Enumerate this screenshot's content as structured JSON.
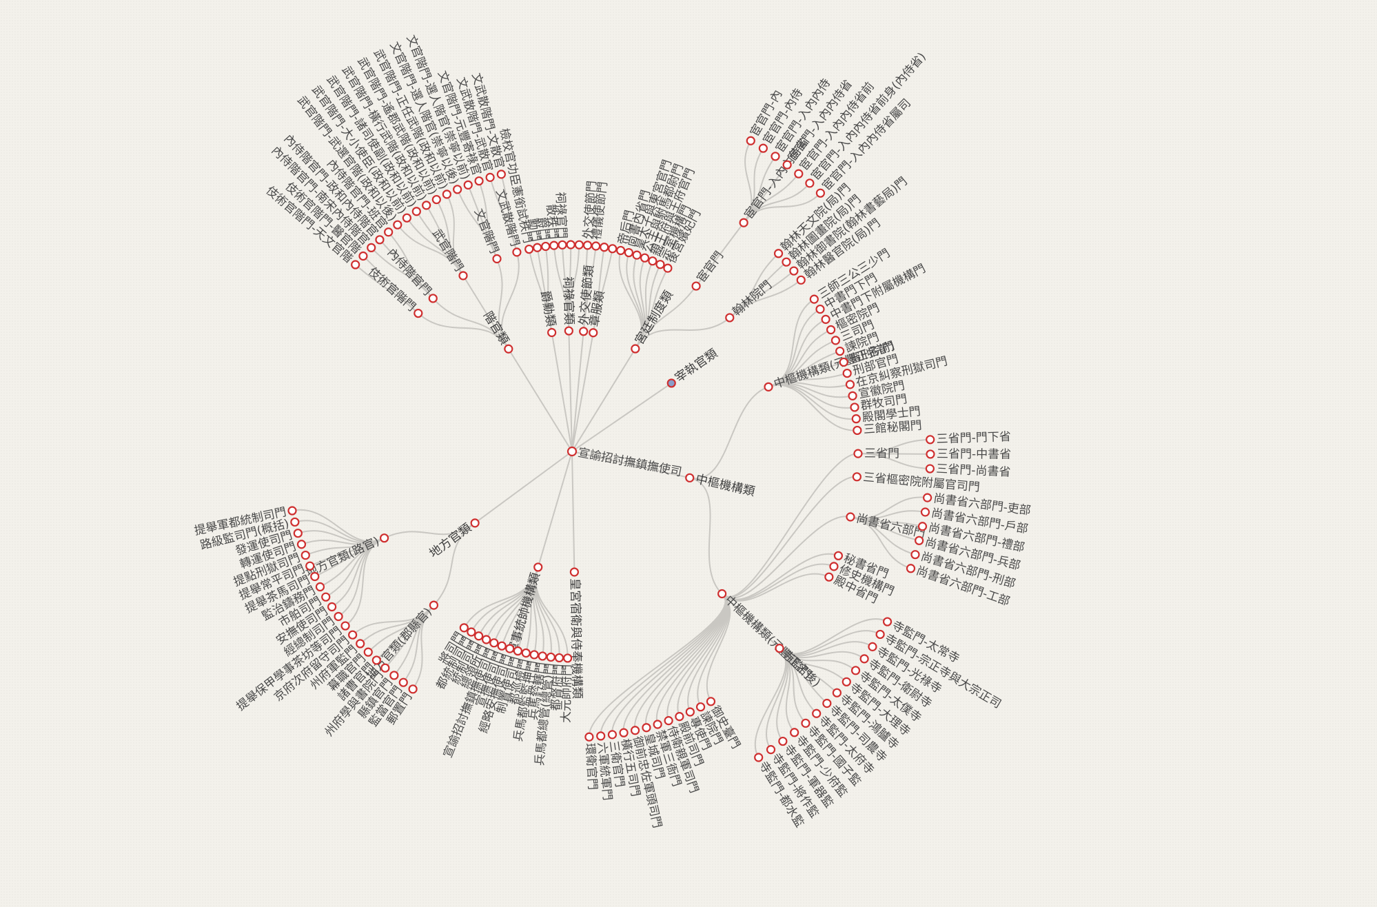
{
  "tree": {
    "label": "宣諭招討撫鎮撫使司",
    "children": [
      {
        "label": "階官類",
        "children": [
          {
            "label": "伎術官階門",
            "children": [
              {
                "label": "伎術官階門-天文官階"
              },
              {
                "label": "伎術官階門-醫官階"
              }
            ]
          },
          {
            "label": "內侍階官門",
            "children": [
              {
                "label": "內侍階官門-南宋內侍階官"
              },
              {
                "label": "內侍階官門-政和內侍階官"
              },
              {
                "label": "內侍階官門-班官"
              }
            ]
          },
          {
            "label": "武官階門",
            "children": [
              {
                "label": "武官階門-武選官階(政和以後)"
              },
              {
                "label": "武官階門-大小使臣(政和以前)"
              },
              {
                "label": "武官階門-諸司使副(政和以前)"
              },
              {
                "label": "武官階門-橫行武階(政和以前)"
              },
              {
                "label": "武官階門-遙郡武階(政和以前)"
              },
              {
                "label": "武官階門-正任武階(政和以前)"
              }
            ]
          },
          {
            "label": "文官階門",
            "children": [
              {
                "label": "文官階門-選人階官(崇寧以後)"
              },
              {
                "label": "文官階門-選人階官(崇寧以前)"
              },
              {
                "label": "文官階門-元豐寄祿官"
              }
            ]
          },
          {
            "label": "文武散階門",
            "children": [
              {
                "label": "文武散階門-武散官"
              },
              {
                "label": "文武散階門-文散官"
              }
            ]
          }
        ]
      },
      {
        "label": "爵勳類",
        "children": [
          {
            "label": "檢校官功臣憲銜試秩門"
          },
          {
            "label": "勳門"
          },
          {
            "label": "爵門"
          }
        ]
      },
      {
        "label": "祠祿官類",
        "children": [
          {
            "label": "散秩門"
          },
          {
            "label": "祠祿官門"
          },
          {
            "label": ""
          },
          {
            "label": ""
          }
        ]
      },
      {
        "label": "外交使節類",
        "children": [
          {
            "label": "外交使節門"
          },
          {
            "label": "禮儀使節門"
          }
        ]
      },
      {
        "label": "章服類",
        "children": [
          {
            "label": ""
          },
          {
            "label": ""
          }
        ]
      },
      {
        "label": "宮廷制度類",
        "children": [
          {
            "label": "帝后門"
          },
          {
            "label": "尚書內省門"
          },
          {
            "label": "皇太子與東宮官門"
          },
          {
            "label": "公主與駙馬都尉門"
          },
          {
            "label": "親王府與王府官門"
          },
          {
            "label": "宗室機構門"
          },
          {
            "label": "後宮嬪妃門"
          },
          {
            "label": "宦官門",
            "children": [
              {
                "label": "宦官門-入內內侍省",
                "children": [
                  {
                    "label": "宦官門-內"
                  },
                  {
                    "label": "宦官門-內侍"
                  },
                  {
                    "label": "宦官門-入內內侍"
                  },
                  {
                    "label": "宦官門-入內內侍省"
                  },
                  {
                    "label": "宦官門-入內內侍省前"
                  },
                  {
                    "label": "宦官門-入內內侍省前身(內侍省)"
                  },
                  {
                    "label": "宦官門-入內內侍省屬司"
                  }
                ]
              }
            ]
          },
          {
            "label": "翰林院門",
            "children": [
              {
                "label": "翰林天文院(局)門"
              },
              {
                "label": "翰林圖畫院(局)門"
              },
              {
                "label": "翰林御書院(翰林書藝局)門"
              },
              {
                "label": "翰林醫官院(局)門"
              }
            ]
          }
        ]
      },
      {
        "label": "宰執官類"
      },
      {
        "label": "中樞機構類",
        "children": [
          {
            "label": "中樞機構類(元豐正名前)",
            "children": [
              {
                "label": "三師三公三少門"
              },
              {
                "label": "中書門下門"
              },
              {
                "label": "中書門下附屬機構門"
              },
              {
                "label": "樞密院門"
              },
              {
                "label": "三司門"
              },
              {
                "label": "諫院門"
              },
              {
                "label": "審刑院門"
              },
              {
                "label": "刑部官門"
              },
              {
                "label": "在京糾察刑獄司門"
              },
              {
                "label": "宣徽院門"
              },
              {
                "label": "群牧司門"
              },
              {
                "label": "殿閣學士門"
              },
              {
                "label": "三館秘閣門"
              }
            ]
          },
          {
            "label": "中樞機構類(元豐正名後)",
            "children": [
              {
                "label": "三省門",
                "children": [
                  {
                    "label": "三省門-門下省"
                  },
                  {
                    "label": "三省門-中書省"
                  },
                  {
                    "label": "三省門-尚書省"
                  }
                ]
              },
              {
                "label": "三省樞密院附屬官司門"
              },
              {
                "label": "尚書省六部門",
                "children": [
                  {
                    "label": "尚書省六部門-吏部"
                  },
                  {
                    "label": "尚書省六部門-戶部"
                  },
                  {
                    "label": "尚書省六部門-禮部"
                  },
                  {
                    "label": "尚書省六部門-兵部"
                  },
                  {
                    "label": "尚書省六部門-刑部"
                  },
                  {
                    "label": "尚書省六部門-工部"
                  }
                ]
              },
              {
                "label": "秘書省門"
              },
              {
                "label": "修史機構門"
              },
              {
                "label": "殿中省門"
              },
              {
                "label": "寺監門",
                "children": [
                  {
                    "label": "寺監門-太常寺"
                  },
                  {
                    "label": "寺監門-宗正寺與大宗正司"
                  },
                  {
                    "label": "寺監門-光祿寺"
                  },
                  {
                    "label": "寺監門-衛尉寺"
                  },
                  {
                    "label": "寺監門-太僕寺"
                  },
                  {
                    "label": "寺監門-大理寺"
                  },
                  {
                    "label": "寺監門-鴻臚寺"
                  },
                  {
                    "label": "寺監門-司農寺"
                  },
                  {
                    "label": "寺監門-太府寺"
                  },
                  {
                    "label": "寺監門-國子監"
                  },
                  {
                    "label": "寺監門-少府監"
                  },
                  {
                    "label": "寺監門-軍器監"
                  },
                  {
                    "label": "寺監門-將作監"
                  },
                  {
                    "label": "寺監門-都水監"
                  }
                ]
              },
              {
                "label": "御史臺門"
              },
              {
                "label": "諫院門"
              },
              {
                "label": "專使門"
              },
              {
                "label": "殿前司門"
              },
              {
                "label": "侍衛親軍司門"
              },
              {
                "label": "禁軍三衙門"
              },
              {
                "label": "皇城司門"
              },
              {
                "label": "御前忠佐軍頭司門"
              },
              {
                "label": "橫行五司門"
              },
              {
                "label": "三衛官門"
              },
              {
                "label": "六軍統軍門"
              },
              {
                "label": "環衛官門"
              }
            ]
          }
        ]
      },
      {
        "label": "皇宮宿衛與侍奉機構類"
      },
      {
        "label": "軍事統帥機構類",
        "children": [
          {
            "label": "大元帥府門"
          },
          {
            "label": "都督府門"
          },
          {
            "label": "兵馬都總管(總管)門"
          },
          {
            "label": "兵馬鈐轄門"
          },
          {
            "label": "兵馬都監監押門"
          },
          {
            "label": "都巡檢門"
          },
          {
            "label": "制置使司門"
          },
          {
            "label": "經略安撫使司門"
          },
          {
            "label": "宣撫使司門"
          },
          {
            "label": "宣諭招討撫鎮撫使司門"
          },
          {
            "label": "總領所門"
          },
          {
            "label": "統制司門"
          },
          {
            "label": "都統制司門"
          },
          {
            "label": "將司門"
          }
        ]
      },
      {
        "label": "地方官類",
        "children": [
          {
            "label": "地方官類(郡縣官)",
            "children": [
              {
                "label": "郵置門"
              },
              {
                "label": "監當官門"
              },
              {
                "label": "縣鎮官門"
              },
              {
                "label": "州府學與書院門"
              },
              {
                "label": "諸曹官門"
              },
              {
                "label": "幕職官門"
              },
              {
                "label": "州府軍監門"
              },
              {
                "label": "京府次府留守司門"
              }
            ]
          },
          {
            "label": "地方官類(路官)",
            "children": [
              {
                "label": "提舉保甲學事茶坊等司門"
              },
              {
                "label": "經總制司門"
              },
              {
                "label": "安撫使司門"
              },
              {
                "label": "市舶司門"
              },
              {
                "label": "監治鑄務門"
              },
              {
                "label": "提舉茶馬司門"
              },
              {
                "label": "提舉常平司門"
              },
              {
                "label": "提點刑獄司門"
              },
              {
                "label": "轉運使司門"
              },
              {
                "label": "發運使司門"
              },
              {
                "label": "路級監司門(概括)"
              },
              {
                "label": "提舉軍都統制司門"
              }
            ]
          }
        ]
      }
    ]
  },
  "colors": {
    "background": "#f3f1eb",
    "link": "#c9c7c2",
    "node_stroke": "#cf2f2f",
    "node_fill": "#ffffff",
    "highlight_fill": "#8a9dc9",
    "text": "#4a4a4a"
  }
}
